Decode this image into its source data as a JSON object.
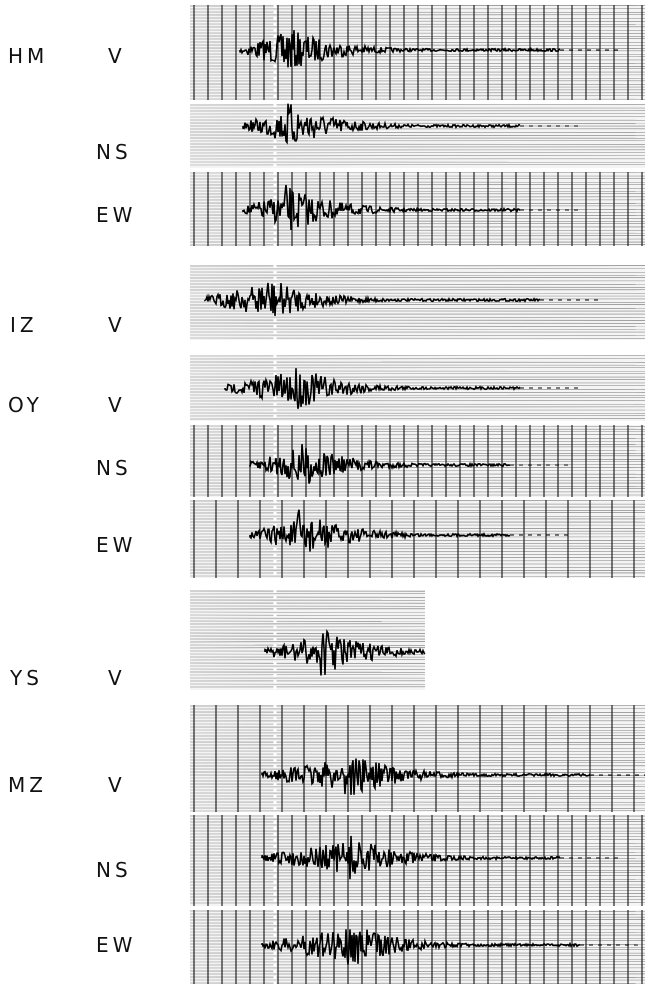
{
  "stations": [
    {
      "code": "HM",
      "components": [
        "V",
        "NS",
        "EW"
      ]
    },
    {
      "code": "IZ",
      "components": [
        "V"
      ]
    },
    {
      "code": "OY",
      "components": [
        "V",
        "NS",
        "EW"
      ]
    },
    {
      "code": "YS",
      "components": [
        "V"
      ]
    },
    {
      "code": "MZ",
      "components": [
        "V",
        "NS",
        "EW"
      ]
    }
  ]
}
